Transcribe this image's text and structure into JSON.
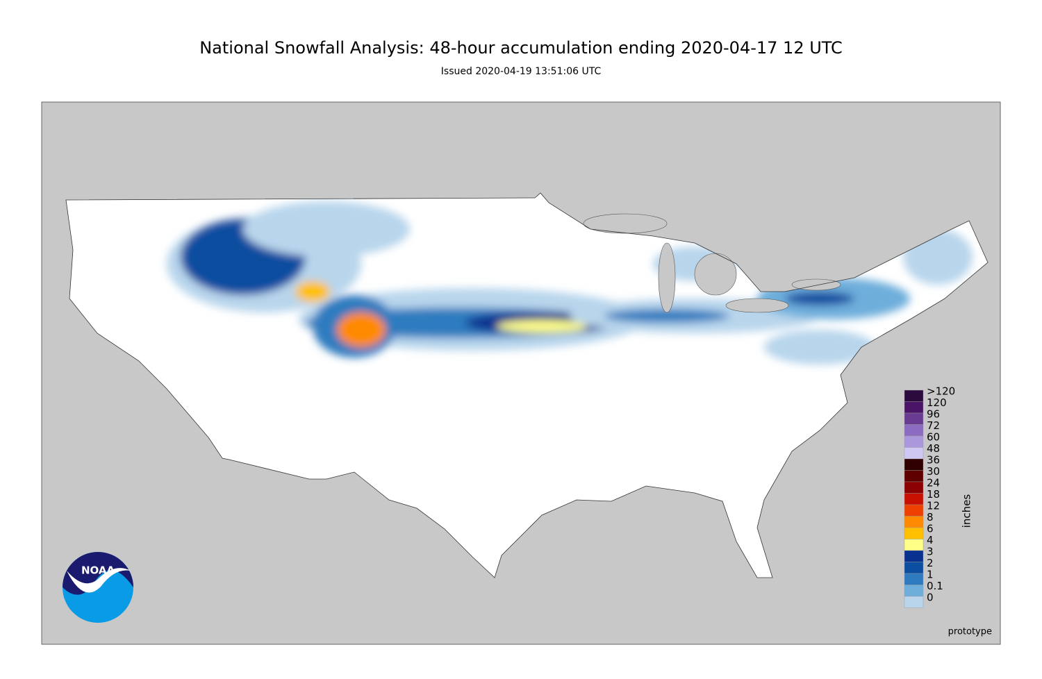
{
  "header": {
    "title": "National Snowfall Analysis: 48-hour accumulation ending 2020-04-17 12 UTC",
    "subtitle": "Issued 2020-04-19 13:51:06 UTC"
  },
  "legend": {
    "title": "inches",
    "items": [
      {
        "label": ">120",
        "color": "#2b0a3d"
      },
      {
        "label": "120",
        "color": "#4a1566"
      },
      {
        "label": "96",
        "color": "#6a3b92"
      },
      {
        "label": "72",
        "color": "#8c6cc0"
      },
      {
        "label": "60",
        "color": "#ab97db"
      },
      {
        "label": "48",
        "color": "#cfc8f3"
      },
      {
        "label": "36",
        "color": "#300000"
      },
      {
        "label": "30",
        "color": "#5e0000"
      },
      {
        "label": "24",
        "color": "#8b0000"
      },
      {
        "label": "18",
        "color": "#c81000"
      },
      {
        "label": "12",
        "color": "#ee4000"
      },
      {
        "label": "8",
        "color": "#ff8a00"
      },
      {
        "label": "6",
        "color": "#ffc000"
      },
      {
        "label": "4",
        "color": "#ffff88"
      },
      {
        "label": "3",
        "color": "#08308f"
      },
      {
        "label": "2",
        "color": "#0c4ea0"
      },
      {
        "label": "1",
        "color": "#2f7bbf"
      },
      {
        "label": "0.1",
        "color": "#6eaedb"
      },
      {
        "label": "0",
        "color": "#b8d5ec"
      }
    ]
  },
  "footnote": "prototype",
  "logo": "NOAA"
}
